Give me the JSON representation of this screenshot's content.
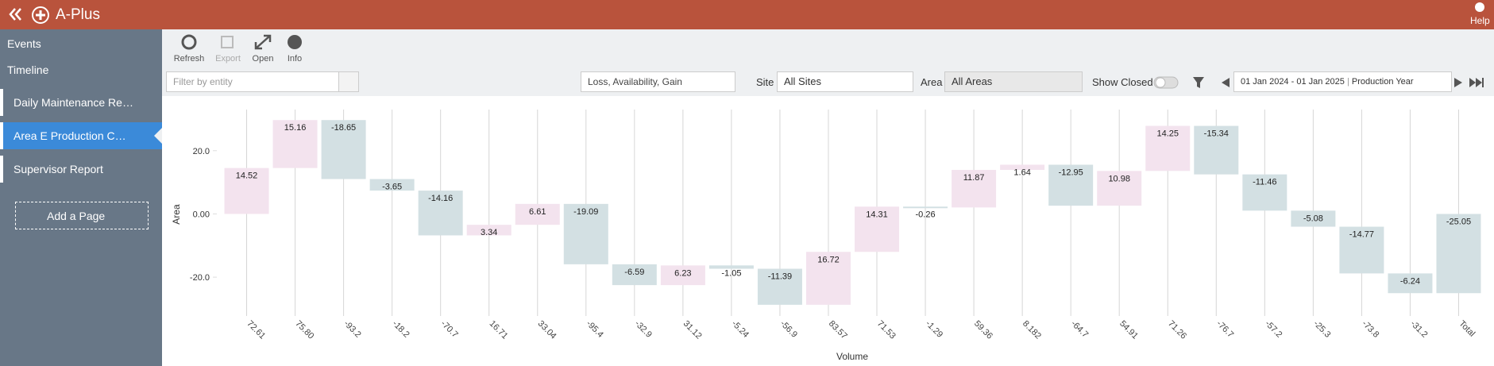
{
  "app": {
    "title": "A-Plus",
    "help": "Help"
  },
  "sidebar": {
    "items": [
      "Events",
      "Timeline"
    ],
    "pages": [
      "Daily Maintenance Re…",
      "Area E Production C…",
      "Supervisor Report"
    ],
    "add_page": "Add a Page"
  },
  "toolbar": [
    "Refresh",
    "Export",
    "Open",
    "Info"
  ],
  "filters": {
    "entity_placeholder": "Filter by entity",
    "measure": "Loss, Availability, Gain",
    "site_label": "Site",
    "site": "All Sites",
    "area_label": "Area",
    "area": "All Areas",
    "show_closed": "Show Closed",
    "date_range": "01 Jan 2024 - 01 Jan 2025",
    "period": "Production Year"
  },
  "chart_data": {
    "type": "waterfall",
    "x_label": "Volume",
    "y_label": "Area",
    "categories": [
      "72.61",
      "75.80",
      "-93.2",
      "-18.2",
      "-70.7",
      "16.71",
      "33.04",
      "-95.4",
      "-32.9",
      "31.12",
      "-5.24",
      "-56.9",
      "83.57",
      "71.53",
      "-1.29",
      "59.36",
      "8.182",
      "-64.7",
      "54.91",
      "71.26",
      "-76.7",
      "-57.2",
      "-25.3",
      "-73.8",
      "-31.2",
      "Total"
    ],
    "values": [
      14.52,
      15.16,
      -18.65,
      -3.65,
      -14.16,
      3.34,
      6.61,
      -19.09,
      -6.59,
      6.23,
      -1.05,
      -11.39,
      16.72,
      14.31,
      -0.26,
      11.87,
      1.64,
      -12.95,
      10.98,
      14.25,
      -15.34,
      -11.46,
      -5.08,
      -14.77,
      -6.24,
      -25.05
    ],
    "increase_color": "#f3e3ee",
    "decrease_color": "#d3e0e3",
    "total_color": "#d3e0e3",
    "ylim": [
      -28,
      33
    ],
    "yticks": [
      {
        "value": 20,
        "label": "20.0"
      },
      {
        "value": 0,
        "label": "0.00"
      },
      {
        "value": -20,
        "label": "-20.0"
      }
    ]
  }
}
